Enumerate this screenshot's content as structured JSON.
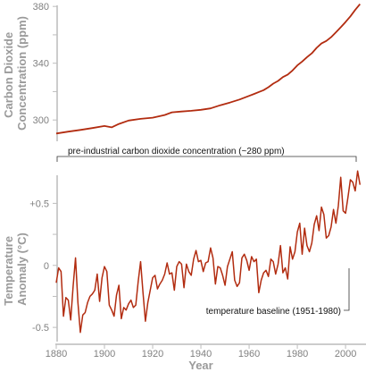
{
  "colors": {
    "series": "#b22c10",
    "axis": "#9a9a9a",
    "text": "#808080",
    "annotation": "#111111"
  },
  "chart_data": [
    {
      "type": "line",
      "title": "",
      "ylabel": "Carbon Dioxide Concentration (ppm)",
      "ylabel_lines": [
        "Carbon Dioxide",
        "Concentration (ppm)"
      ],
      "xlim": [
        1880,
        2007
      ],
      "ylim": [
        285,
        382
      ],
      "yticks": [
        300,
        340,
        380
      ],
      "yticks_minor": [
        320,
        360
      ],
      "annotation": "pre-industrial carbon dioxide concentration (~280 ppm)",
      "series": [
        {
          "x": [
            1880,
            1885,
            1890,
            1895,
            1900,
            1903,
            1906,
            1910,
            1915,
            1920,
            1925,
            1928,
            1932,
            1936,
            1940,
            1944,
            1948,
            1952,
            1956,
            1960,
            1962,
            1964,
            1966,
            1968,
            1970,
            1972,
            1974,
            1976,
            1978,
            1980,
            1982,
            1984,
            1986,
            1988,
            1990,
            1992,
            1994,
            1996,
            1998,
            2000,
            2002,
            2004,
            2006
          ],
          "y": [
            290.5,
            291.8,
            293.0,
            294.3,
            295.8,
            294.8,
            297.2,
            299.6,
            300.8,
            301.6,
            303.5,
            305.4,
            306.0,
            306.5,
            307.2,
            308.2,
            310.4,
            312.3,
            314.4,
            317.0,
            318.3,
            319.7,
            321.0,
            323.1,
            325.6,
            327.5,
            330.2,
            332.0,
            334.9,
            338.5,
            341.2,
            344.3,
            347.0,
            350.8,
            353.9,
            355.7,
            358.3,
            361.8,
            365.3,
            369.0,
            373.0,
            377.5,
            381.6
          ]
        }
      ]
    },
    {
      "type": "line",
      "title": "",
      "xlabel": "Year",
      "ylabel": "Temperature Anomaly (°C)",
      "ylabel_lines": [
        "Temperature",
        "Anomaly (°C)"
      ],
      "xlim": [
        1880,
        2007
      ],
      "ylim": [
        -0.6,
        0.82
      ],
      "xticks": [
        1880,
        1900,
        1920,
        1940,
        1960,
        1980,
        2000
      ],
      "yticks": [
        -0.5,
        0,
        0.5
      ],
      "ytick_labels": [
        "-0.5",
        "0",
        "+0.5"
      ],
      "yticks_minor": [
        -0.25,
        0.25
      ],
      "annotation": "temperature baseline (1951-1980)",
      "series": [
        {
          "x": [
            1880,
            1881,
            1882,
            1883,
            1884,
            1885,
            1886,
            1887,
            1888,
            1889,
            1890,
            1891,
            1892,
            1893,
            1894,
            1895,
            1896,
            1897,
            1898,
            1899,
            1900,
            1901,
            1902,
            1903,
            1904,
            1905,
            1906,
            1907,
            1908,
            1909,
            1910,
            1911,
            1912,
            1913,
            1914,
            1915,
            1916,
            1917,
            1918,
            1919,
            1920,
            1921,
            1922,
            1923,
            1924,
            1925,
            1926,
            1927,
            1928,
            1929,
            1930,
            1931,
            1932,
            1933,
            1934,
            1935,
            1936,
            1937,
            1938,
            1939,
            1940,
            1941,
            1942,
            1943,
            1944,
            1945,
            1946,
            1947,
            1948,
            1949,
            1950,
            1951,
            1952,
            1953,
            1954,
            1955,
            1956,
            1957,
            1958,
            1959,
            1960,
            1961,
            1962,
            1963,
            1964,
            1965,
            1966,
            1967,
            1968,
            1969,
            1970,
            1971,
            1972,
            1973,
            1974,
            1975,
            1976,
            1977,
            1978,
            1979,
            1980,
            1981,
            1982,
            1983,
            1984,
            1985,
            1986,
            1987,
            1988,
            1989,
            1990,
            1991,
            1992,
            1993,
            1994,
            1995,
            1996,
            1997,
            1998,
            1999,
            2000,
            2001,
            2002,
            2003,
            2004,
            2005,
            2006
          ],
          "y": [
            -0.14,
            -0.02,
            -0.05,
            -0.41,
            -0.26,
            -0.28,
            -0.44,
            -0.17,
            0.06,
            -0.3,
            -0.54,
            -0.4,
            -0.38,
            -0.3,
            -0.25,
            -0.23,
            -0.2,
            -0.07,
            -0.29,
            -0.1,
            -0.01,
            -0.05,
            -0.32,
            -0.36,
            -0.41,
            -0.24,
            -0.16,
            -0.43,
            -0.34,
            -0.36,
            -0.31,
            -0.28,
            -0.34,
            -0.32,
            -0.13,
            0.03,
            -0.22,
            -0.45,
            -0.3,
            -0.2,
            -0.1,
            -0.08,
            -0.19,
            -0.15,
            -0.12,
            -0.07,
            0.02,
            -0.07,
            -0.06,
            -0.2,
            -0.01,
            0.03,
            0.01,
            -0.18,
            0.01,
            -0.05,
            -0.08,
            0.05,
            0.12,
            0.03,
            0.04,
            -0.05,
            0.02,
            0.03,
            0.14,
            0.06,
            -0.15,
            -0.01,
            -0.02,
            -0.08,
            -0.16,
            -0.01,
            0.05,
            0.11,
            -0.12,
            -0.17,
            -0.14,
            0.06,
            0.09,
            0.04,
            -0.04,
            0.07,
            0.03,
            0.05,
            -0.22,
            -0.12,
            -0.06,
            -0.04,
            -0.09,
            0.05,
            0.03,
            -0.07,
            0.01,
            0.16,
            -0.06,
            -0.02,
            -0.11,
            0.15,
            0.05,
            0.11,
            0.27,
            0.34,
            0.09,
            0.3,
            0.16,
            0.11,
            0.18,
            0.33,
            0.4,
            0.28,
            0.47,
            0.41,
            0.22,
            0.24,
            0.31,
            0.45,
            0.34,
            0.48,
            0.71,
            0.44,
            0.42,
            0.55,
            0.69,
            0.67,
            0.6,
            0.76,
            0.65
          ]
        }
      ]
    }
  ]
}
